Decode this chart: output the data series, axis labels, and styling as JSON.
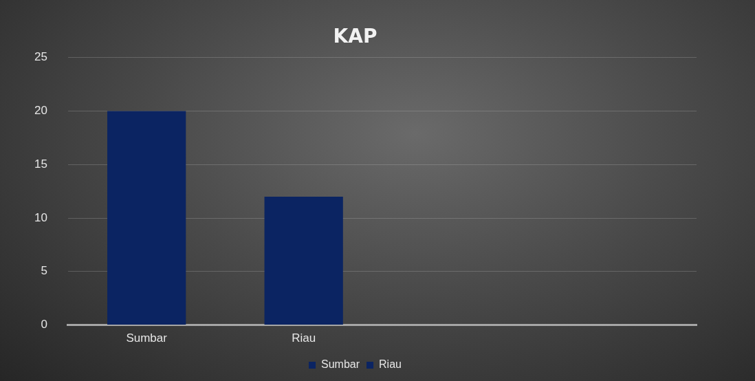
{
  "chart_data": {
    "type": "bar",
    "title": "KAP",
    "categories": [
      "Sumbar",
      "Riau",
      null,
      null
    ],
    "series": [
      {
        "name": "Sumbar",
        "color": "#0b2462",
        "values": [
          20,
          null,
          null,
          null
        ]
      },
      {
        "name": "Riau",
        "color": "#0b2462",
        "values": [
          null,
          12,
          null,
          null
        ]
      }
    ],
    "ylim": [
      0,
      25
    ],
    "yticks": [
      0,
      5,
      10,
      15,
      20,
      25
    ],
    "grid": "y",
    "legend": "bottom"
  }
}
